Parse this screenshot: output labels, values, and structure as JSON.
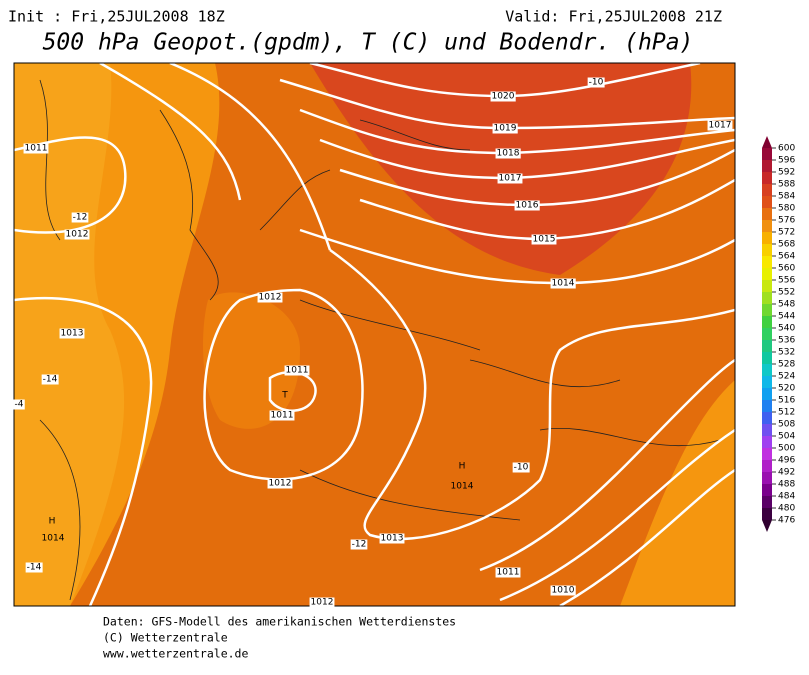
{
  "header": {
    "init": "Init : Fri,25JUL2008 18Z",
    "valid": "Valid: Fri,25JUL2008 21Z",
    "title": "500 hPa Geopot.(gpdm), T (C) und Bodendr. (hPa)"
  },
  "map": {
    "labels": [
      "1020",
      "1019",
      "1018",
      "1017",
      "1016",
      "1015",
      "1014",
      "1017",
      "1011",
      "1012",
      "1013",
      "1012",
      "1011",
      "1011",
      "1012",
      "1013",
      "1011",
      "1010",
      "1012",
      "-10",
      "-12",
      "-14",
      "-4",
      "-10",
      "-12",
      "-14",
      "T",
      "H",
      "H",
      "1014",
      "1014"
    ]
  },
  "legend": {
    "values": [
      476,
      480,
      484,
      488,
      492,
      496,
      500,
      504,
      508,
      512,
      516,
      520,
      524,
      528,
      532,
      536,
      540,
      544,
      548,
      552,
      556,
      560,
      564,
      568,
      572,
      576,
      580,
      584,
      588,
      592,
      596,
      600
    ],
    "colors": [
      "#3c0040",
      "#5a0066",
      "#7a008c",
      "#9a10b0",
      "#b020c8",
      "#c030e0",
      "#a040f0",
      "#7050f0",
      "#4060f0",
      "#2080f0",
      "#10a0f0",
      "#10b8e8",
      "#10c8c8",
      "#10c8a0",
      "#20c880",
      "#30d060",
      "#40d040",
      "#70d830",
      "#a0e020",
      "#c8e810",
      "#e8f000",
      "#f8e800",
      "#f8d000",
      "#f8b000",
      "#f09010",
      "#e87010",
      "#e05018",
      "#d84020",
      "#c82828",
      "#b01830",
      "#980838"
    ]
  },
  "footer": {
    "lines": [
      "Daten: GFS-Modell des amerikanischen Wetterdienstes",
      "(C) Wetterzentrale",
      "www.wetterzentrale.de"
    ]
  }
}
